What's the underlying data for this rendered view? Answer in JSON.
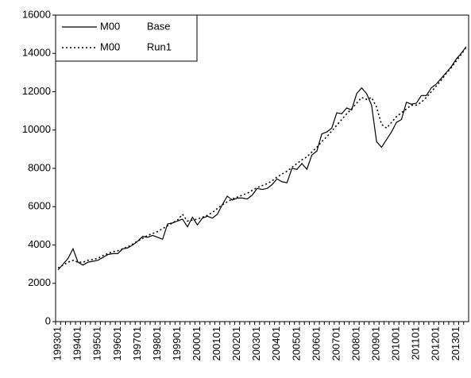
{
  "chart_data": {
    "type": "line",
    "categories": [
      "199301",
      null,
      null,
      null,
      "199401",
      null,
      null,
      null,
      "199501",
      null,
      null,
      null,
      "199601",
      null,
      null,
      null,
      "199701",
      null,
      null,
      null,
      "199801",
      null,
      null,
      null,
      "199901",
      null,
      null,
      null,
      "200001",
      null,
      null,
      null,
      "200101",
      null,
      null,
      null,
      "200201",
      null,
      null,
      null,
      "200301",
      null,
      null,
      null,
      "200401",
      null,
      null,
      null,
      "200501",
      null,
      null,
      null,
      "200601",
      null,
      null,
      null,
      "200701",
      null,
      null,
      null,
      "200801",
      null,
      null,
      null,
      "200901",
      null,
      null,
      null,
      "201001",
      null,
      null,
      null,
      "201101",
      null,
      null,
      null,
      "201201",
      null,
      null,
      null,
      "201301",
      null,
      null
    ],
    "series": [
      {
        "name": "M00 Base",
        "color": "#000000",
        "dash": "solid",
        "values": [
          2700,
          3000,
          3300,
          3800,
          3100,
          2950,
          3100,
          3150,
          3200,
          3350,
          3500,
          3550,
          3550,
          3800,
          3850,
          4000,
          4200,
          4450,
          4400,
          4500,
          4400,
          4300,
          5100,
          5150,
          5250,
          5350,
          4950,
          5450,
          5050,
          5400,
          5500,
          5400,
          5600,
          6100,
          6550,
          6350,
          6450,
          6450,
          6400,
          6600,
          6950,
          6900,
          6950,
          7150,
          7450,
          7300,
          7250,
          8000,
          7950,
          8250,
          7950,
          8700,
          8900,
          9800,
          9900,
          10100,
          10900,
          10850,
          11150,
          11050,
          11900,
          12200,
          11900,
          11300,
          9400,
          9100,
          9500,
          9900,
          10400,
          10550,
          11450,
          11350,
          11400,
          11800,
          11800,
          12200,
          12400,
          12700,
          13000,
          13300,
          13700,
          14000,
          14350
        ]
      },
      {
        "name": "M00 Run1",
        "color": "#000000",
        "dash": "dotted",
        "values": [
          2800,
          2950,
          3100,
          3200,
          3100,
          3100,
          3200,
          3250,
          3300,
          3450,
          3550,
          3650,
          3700,
          3800,
          3900,
          4050,
          4200,
          4350,
          4500,
          4600,
          4700,
          4850,
          5000,
          5150,
          5300,
          5600,
          5250,
          5300,
          5350,
          5450,
          5550,
          5700,
          5900,
          6100,
          6250,
          6400,
          6500,
          6600,
          6700,
          6850,
          7000,
          7100,
          7200,
          7350,
          7550,
          7700,
          7850,
          8050,
          8250,
          8450,
          8600,
          8850,
          9100,
          9400,
          9650,
          9950,
          10250,
          10550,
          10850,
          11100,
          11400,
          11700,
          11600,
          11700,
          11200,
          10300,
          10100,
          10400,
          10700,
          10900,
          11100,
          11300,
          11300,
          11450,
          11700,
          12000,
          12300,
          12600,
          12950,
          13250,
          13600,
          13950,
          14300
        ]
      }
    ],
    "ylim": [
      0,
      16000
    ],
    "yticks": [
      0,
      2000,
      4000,
      6000,
      8000,
      10000,
      12000,
      14000,
      16000
    ],
    "grid": false,
    "legend": "upper left"
  }
}
